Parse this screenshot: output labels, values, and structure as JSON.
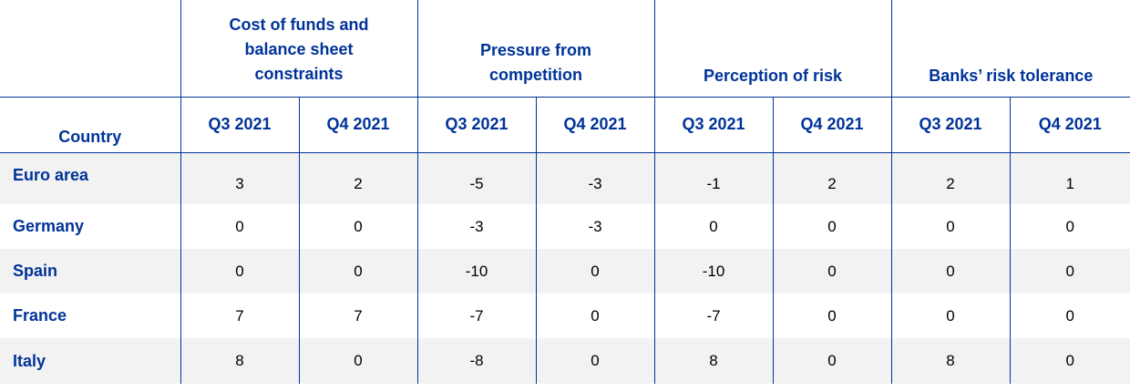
{
  "table": {
    "groups": [
      {
        "label": "Cost of funds and balance sheet constraints",
        "lines": [
          "Cost of funds and",
          "balance sheet",
          "constraints"
        ]
      },
      {
        "label": "Pressure from competition",
        "lines": [
          "Pressure from",
          "competition"
        ]
      },
      {
        "label": "Perception of risk",
        "lines": [
          "Perception of risk"
        ]
      },
      {
        "label": "Banks’ risk tolerance",
        "lines": [
          "Banks’ risk tolerance"
        ]
      }
    ],
    "country_header": "Country",
    "quarters": [
      "Q3 2021",
      "Q4 2021",
      "Q3 2021",
      "Q4 2021",
      "Q3 2021",
      "Q4 2021",
      "Q3 2021",
      "Q4 2021"
    ],
    "rows": [
      {
        "country": "Euro area",
        "values": [
          "3",
          "2",
          "-5",
          "-3",
          "-1",
          "2",
          "2",
          "1"
        ]
      },
      {
        "country": "Germany",
        "values": [
          "0",
          "0",
          "-3",
          "-3",
          "0",
          "0",
          "0",
          "0"
        ]
      },
      {
        "country": "Spain",
        "values": [
          "0",
          "0",
          "-10",
          "0",
          "-10",
          "0",
          "0",
          "0"
        ]
      },
      {
        "country": "France",
        "values": [
          "7",
          "7",
          "-7",
          "0",
          "-7",
          "0",
          "0",
          "0"
        ]
      },
      {
        "country": "Italy",
        "values": [
          "8",
          "0",
          "-8",
          "0",
          "8",
          "0",
          "8",
          "0"
        ]
      }
    ]
  },
  "colors": {
    "header_text": "#003399",
    "rule": "#003399",
    "shade": "#f2f2f2"
  }
}
